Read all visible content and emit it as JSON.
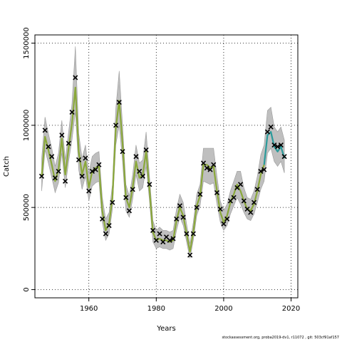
{
  "chart_data": {
    "type": "line",
    "xlabel": "Years",
    "ylabel": "Catch",
    "xlim": [
      1944,
      2022
    ],
    "ylim": [
      -50000,
      1550000
    ],
    "x_ticks": [
      1960,
      1980,
      2000,
      2020
    ],
    "x_tick_labels": [
      "1960",
      "1980",
      "2000",
      "2020"
    ],
    "y_ticks": [
      0,
      500000,
      1000000,
      1500000
    ],
    "y_tick_labels": [
      "0",
      "500000",
      "1000000",
      "1500000"
    ],
    "grid": true,
    "grid_style": "dotted",
    "colors": {
      "band": "#bfbfbf",
      "band_edge": "#9a9a9a",
      "fit_line": "#8aa83a",
      "forecast_line": "#2a9a9a",
      "points": "#000000"
    },
    "x": [
      1946,
      1947,
      1948,
      1949,
      1950,
      1951,
      1952,
      1953,
      1954,
      1955,
      1956,
      1957,
      1958,
      1959,
      1960,
      1961,
      1962,
      1963,
      1964,
      1965,
      1966,
      1967,
      1968,
      1969,
      1970,
      1971,
      1972,
      1973,
      1974,
      1975,
      1976,
      1977,
      1978,
      1979,
      1980,
      1981,
      1982,
      1983,
      1984,
      1985,
      1986,
      1987,
      1988,
      1989,
      1990,
      1991,
      1992,
      1993,
      1994,
      1995,
      1996,
      1997,
      1998,
      1999,
      2000,
      2001,
      2002,
      2003,
      2004,
      2005,
      2006,
      2007,
      2008,
      2009,
      2010,
      2011,
      2012,
      2013,
      2014,
      2015,
      2016,
      2017,
      2018
    ],
    "series": [
      {
        "role": "observed",
        "values": [
          690000,
          970000,
          870000,
          810000,
          680000,
          720000,
          940000,
          660000,
          890000,
          1080000,
          1290000,
          790000,
          690000,
          800000,
          600000,
          720000,
          730000,
          760000,
          430000,
          340000,
          390000,
          530000,
          1000000,
          1140000,
          840000,
          560000,
          480000,
          610000,
          810000,
          720000,
          690000,
          850000,
          640000,
          360000,
          300000,
          340000,
          290000,
          320000,
          300000,
          310000,
          430000,
          510000,
          440000,
          340000,
          210000,
          340000,
          500000,
          580000,
          770000,
          740000,
          730000,
          760000,
          590000,
          490000,
          400000,
          430000,
          540000,
          560000,
          620000,
          640000,
          540000,
          490000,
          470000,
          530000,
          610000,
          720000,
          730000,
          960000,
          990000,
          880000,
          870000,
          880000,
          810000
        ]
      },
      {
        "role": "fitted",
        "values": [
          690000,
          930000,
          850000,
          760000,
          660000,
          730000,
          920000,
          700000,
          860000,
          1010000,
          1230000,
          840000,
          700000,
          780000,
          620000,
          720000,
          740000,
          750000,
          480000,
          360000,
          400000,
          560000,
          980000,
          1150000,
          890000,
          560000,
          500000,
          620000,
          780000,
          680000,
          700000,
          840000,
          610000,
          350000,
          300000,
          310000,
          300000,
          300000,
          290000,
          300000,
          420000,
          500000,
          450000,
          340000,
          230000,
          350000,
          510000,
          570000,
          760000,
          760000,
          740000,
          750000,
          600000,
          470000,
          410000,
          450000,
          530000,
          580000,
          640000,
          600000,
          540000,
          490000,
          480000,
          520000,
          600000,
          700000,
          760000,
          940000,
          960000,
          870000,
          840000,
          870000,
          800000
        ]
      },
      {
        "role": "interval",
        "lower": [
          600000,
          850000,
          770000,
          680000,
          590000,
          650000,
          830000,
          620000,
          780000,
          910000,
          1080000,
          730000,
          610000,
          690000,
          540000,
          630000,
          650000,
          660000,
          410000,
          300000,
          340000,
          490000,
          880000,
          1000000,
          780000,
          480000,
          440000,
          550000,
          700000,
          600000,
          620000,
          750000,
          540000,
          290000,
          250000,
          260000,
          250000,
          250000,
          240000,
          250000,
          360000,
          440000,
          390000,
          290000,
          190000,
          300000,
          450000,
          510000,
          660000,
          650000,
          640000,
          650000,
          520000,
          410000,
          360000,
          390000,
          460000,
          510000,
          560000,
          520000,
          470000,
          430000,
          420000,
          460000,
          530000,
          610000,
          660000,
          830000,
          860000,
          780000,
          750000,
          780000,
          710000
        ],
        "upper": [
          800000,
          1050000,
          950000,
          860000,
          750000,
          830000,
          1030000,
          790000,
          960000,
          1130000,
          1480000,
          950000,
          800000,
          880000,
          710000,
          810000,
          830000,
          840000,
          560000,
          430000,
          470000,
          640000,
          1100000,
          1330000,
          1000000,
          640000,
          570000,
          700000,
          880000,
          770000,
          790000,
          960000,
          690000,
          420000,
          360000,
          380000,
          360000,
          360000,
          350000,
          360000,
          490000,
          580000,
          530000,
          400000,
          280000,
          410000,
          580000,
          640000,
          860000,
          860000,
          860000,
          860000,
          690000,
          540000,
          480000,
          520000,
          600000,
          660000,
          720000,
          720000,
          620000,
          560000,
          550000,
          600000,
          690000,
          820000,
          880000,
          1090000,
          1110000,
          990000,
          960000,
          990000,
          910000
        ]
      }
    ],
    "forecast_start_year": 2012
  },
  "footer_text": "stockassessment.org, proba2019-dv1, r11072 , git: 503cf91af157"
}
